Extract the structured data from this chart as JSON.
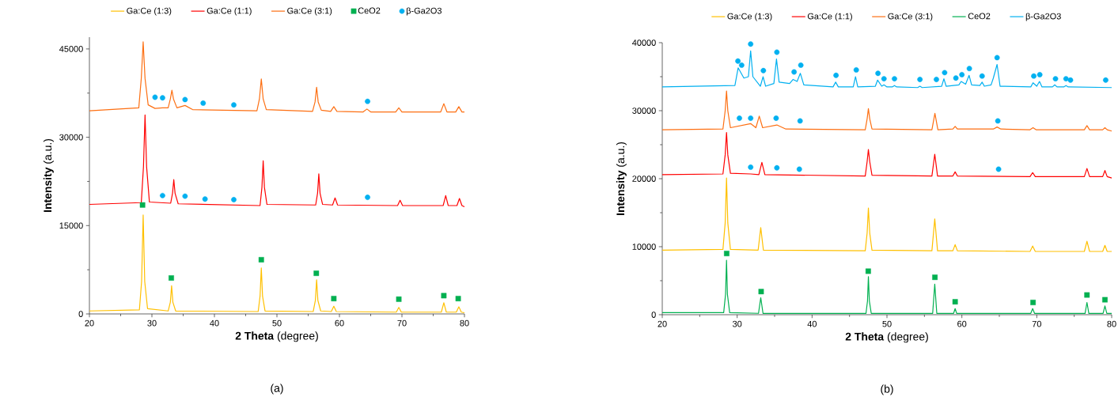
{
  "chart_data": [
    {
      "type": "line",
      "xlabel": "**2 Theta** (degree)",
      "ylabel": "**Intensity** (a.u.)",
      "annotations": [
        "(a)"
      ],
      "xlim": [
        20,
        80
      ],
      "ylim": [
        0,
        47000
      ],
      "xticks": [
        20,
        30,
        40,
        50,
        60,
        70,
        80
      ],
      "yticks": [
        0,
        15000,
        30000,
        45000
      ],
      "legend": "top",
      "series": [
        {
          "name": "Ga:Ce (1:3)",
          "color": "#ffc000",
          "type": "line",
          "marker": "none",
          "x": [
            20,
            28.0,
            28.35,
            28.6,
            28.85,
            29.3,
            32.6,
            32.95,
            33.15,
            33.35,
            33.8,
            47.0,
            47.3,
            47.5,
            47.7,
            48.1,
            55.8,
            56.15,
            56.35,
            56.55,
            57.0,
            58.7,
            59.1,
            59.5,
            69.1,
            69.5,
            69.9,
            76.3,
            76.7,
            77.1,
            78.7,
            79.1,
            79.5,
            80
          ],
          "values": [
            500,
            700,
            5500,
            16800,
            5500,
            900,
            500,
            2000,
            4800,
            2000,
            500,
            400,
            3000,
            7800,
            3000,
            500,
            400,
            2300,
            5800,
            2300,
            500,
            400,
            1300,
            400,
            300,
            1100,
            300,
            300,
            1900,
            300,
            300,
            1200,
            300,
            200
          ]
        },
        {
          "name": "Ga:Ce (1:1)",
          "color": "#ff0000",
          "type": "line",
          "marker": "none",
          "x": [
            20,
            28.3,
            28.65,
            28.9,
            29.15,
            29.6,
            33.0,
            33.3,
            33.5,
            33.7,
            34.2,
            47.3,
            47.6,
            47.8,
            48.0,
            48.4,
            56.2,
            56.5,
            56.7,
            56.9,
            57.3,
            58.9,
            59.3,
            59.7,
            69.3,
            69.7,
            70.1,
            76.6,
            77.0,
            77.4,
            78.8,
            79.2,
            79.6,
            80
          ],
          "values": [
            18600,
            18900,
            25000,
            33800,
            25000,
            19000,
            18800,
            20500,
            22800,
            20500,
            18700,
            18400,
            21500,
            26000,
            21500,
            18600,
            18500,
            20500,
            23800,
            20500,
            18600,
            18500,
            19700,
            18500,
            18400,
            19300,
            18400,
            18400,
            20100,
            18400,
            18400,
            19600,
            18400,
            18200
          ]
        },
        {
          "name": "Ga:Ce (3:1)",
          "color": "#fd6f12",
          "type": "line",
          "marker": "none",
          "x": [
            20,
            27.9,
            28.3,
            28.6,
            28.9,
            29.4,
            30.5,
            31.7,
            32.6,
            32.95,
            33.2,
            33.45,
            34.0,
            35.3,
            36.5,
            46.8,
            47.2,
            47.5,
            47.8,
            48.3,
            55.7,
            56.1,
            56.35,
            56.6,
            57.1,
            58.6,
            59.1,
            59.6,
            63.8,
            64.4,
            65.0,
            69.0,
            69.5,
            70.0,
            76.2,
            76.7,
            77.2,
            78.6,
            79.1,
            79.6,
            80
          ],
          "values": [
            34500,
            35000,
            40000,
            46200,
            40000,
            35500,
            34900,
            35000,
            35000,
            36500,
            38000,
            36500,
            35000,
            35400,
            34700,
            34500,
            36500,
            39900,
            36500,
            34700,
            34400,
            36000,
            38500,
            36000,
            34600,
            34400,
            35200,
            34400,
            34300,
            34800,
            34300,
            34300,
            35000,
            34300,
            34300,
            35700,
            34300,
            34300,
            35200,
            34300,
            34300
          ]
        },
        {
          "name": "CeO2",
          "color": "#00b050",
          "type": "scatter",
          "marker": "square",
          "x": [
            28.5,
            33.1,
            47.5,
            56.3,
            59.1,
            69.5,
            76.7,
            79.0
          ],
          "values": [
            18500,
            6100,
            9200,
            6900,
            2600,
            2500,
            3100,
            2600
          ]
        },
        {
          "name": "β-Ga2O3",
          "color": "#00b0f0",
          "type": "scatter",
          "marker": "circle",
          "x": [
            30.5,
            31.7,
            35.3,
            38.2,
            43.1,
            64.5,
            31.7,
            35.3,
            38.5,
            43.1,
            64.5
          ],
          "values": [
            36800,
            36700,
            36400,
            35800,
            35500,
            36100,
            20100,
            20000,
            19500,
            19400,
            19800
          ]
        }
      ]
    },
    {
      "type": "line",
      "xlabel": "**2 Theta** (degree)",
      "ylabel": "**Intensity** (a.u.)",
      "annotations": [
        "(b)"
      ],
      "xlim": [
        20,
        80
      ],
      "ylim": [
        0,
        40000
      ],
      "xticks": [
        20,
        30,
        40,
        50,
        60,
        70,
        80
      ],
      "yticks": [
        0,
        10000,
        20000,
        30000,
        40000
      ],
      "legend": "top",
      "series": [
        {
          "name": "Ga:Ce (1:3)",
          "color": "#ffc000",
          "type": "line",
          "marker": "none",
          "x": [
            20,
            28.1,
            28.4,
            28.58,
            28.75,
            29.1,
            32.8,
            33.15,
            33.5,
            47.1,
            47.35,
            47.52,
            47.7,
            48.0,
            56.0,
            56.38,
            56.75,
            58.8,
            59.1,
            59.4,
            69.1,
            69.45,
            69.8,
            76.35,
            76.7,
            77.05,
            78.8,
            79.1,
            79.4,
            80
          ],
          "values": [
            9500,
            9600,
            13500,
            20100,
            13500,
            9600,
            9500,
            12800,
            9500,
            9400,
            12000,
            15700,
            12000,
            9500,
            9400,
            14100,
            9400,
            9400,
            10300,
            9400,
            9300,
            10100,
            9300,
            9300,
            10800,
            9300,
            9300,
            10200,
            9300,
            9300
          ]
        },
        {
          "name": "Ga:Ce (1:1)",
          "color": "#ff0000",
          "type": "line",
          "marker": "none",
          "x": [
            20,
            28.1,
            28.4,
            28.58,
            28.75,
            29.1,
            31.8,
            32.9,
            33.3,
            33.7,
            47.1,
            47.35,
            47.52,
            47.7,
            48.0,
            56.0,
            56.38,
            56.75,
            58.8,
            59.1,
            59.4,
            69.1,
            69.45,
            69.8,
            76.35,
            76.7,
            77.05,
            78.8,
            79.1,
            79.4,
            80
          ],
          "values": [
            20600,
            20700,
            23500,
            26800,
            23500,
            20800,
            20700,
            20600,
            22400,
            20600,
            20400,
            22500,
            24300,
            22500,
            20500,
            20400,
            23600,
            20400,
            20400,
            21000,
            20400,
            20300,
            20900,
            20300,
            20300,
            21500,
            20300,
            20300,
            21200,
            20300,
            20100
          ]
        },
        {
          "name": "Ga:Ce (3:1)",
          "color": "#fd6f12",
          "type": "line",
          "marker": "none",
          "x": [
            20,
            28.1,
            28.4,
            28.58,
            28.75,
            29.1,
            31.8,
            32.5,
            32.95,
            33.4,
            35.3,
            36.5,
            47.1,
            47.35,
            47.52,
            47.7,
            48.0,
            56.0,
            56.4,
            56.8,
            58.8,
            59.1,
            59.4,
            64.2,
            64.7,
            65.2,
            69.1,
            69.5,
            69.9,
            76.35,
            76.7,
            77.05,
            78.8,
            79.1,
            79.4,
            80
          ],
          "values": [
            27200,
            27300,
            30000,
            32900,
            30000,
            27500,
            28100,
            27500,
            29200,
            27500,
            27900,
            27300,
            27200,
            28800,
            30300,
            28800,
            27300,
            27200,
            29600,
            27200,
            27300,
            27700,
            27300,
            27300,
            27600,
            27300,
            27200,
            27500,
            27200,
            27200,
            27800,
            27200,
            27200,
            27500,
            27200,
            27000
          ]
        },
        {
          "name": "CeO2",
          "color": "#00b050",
          "type": "line",
          "marker": "none",
          "x": [
            20,
            28.2,
            28.45,
            28.58,
            28.7,
            29.0,
            32.85,
            33.15,
            33.45,
            47.2,
            47.4,
            47.52,
            47.65,
            47.9,
            56.1,
            56.38,
            56.65,
            58.9,
            59.1,
            59.3,
            69.2,
            69.45,
            69.7,
            76.45,
            76.7,
            76.95,
            78.85,
            79.1,
            79.35,
            80
          ],
          "values": [
            300,
            300,
            3000,
            8000,
            3000,
            300,
            200,
            2500,
            200,
            200,
            2000,
            5600,
            2000,
            200,
            200,
            4500,
            200,
            200,
            900,
            200,
            200,
            900,
            200,
            200,
            1800,
            200,
            200,
            1300,
            200,
            200
          ]
        },
        {
          "name": "β-Ga2O3",
          "color": "#00b0f0",
          "type": "line",
          "marker": "none",
          "x": [
            20,
            29.7,
            30.13,
            30.9,
            31.5,
            31.8,
            32.1,
            33.1,
            33.46,
            33.8,
            34.9,
            35.25,
            35.6,
            37.0,
            37.47,
            38.0,
            38.43,
            38.9,
            42.8,
            43.15,
            43.5,
            45.5,
            45.8,
            46.1,
            48.45,
            48.75,
            49.3,
            49.6,
            50.0,
            50.7,
            51.0,
            51.3,
            54.1,
            54.4,
            54.7,
            57.3,
            57.6,
            57.9,
            59.6,
            59.9,
            60.5,
            60.96,
            61.3,
            62.4,
            62.7,
            63.0,
            63.9,
            64.2,
            64.7,
            65.1,
            69.2,
            69.5,
            70.0,
            70.36,
            70.7,
            72.1,
            72.4,
            72.7,
            73.6,
            73.9,
            74.2,
            80
          ],
          "values": [
            33500,
            33700,
            36300,
            34800,
            35000,
            38800,
            35000,
            33600,
            35000,
            33600,
            34000,
            37600,
            34200,
            34000,
            34600,
            34300,
            35500,
            33800,
            33500,
            34200,
            33500,
            33500,
            35000,
            33500,
            33600,
            34500,
            33600,
            33800,
            33500,
            33500,
            33700,
            33500,
            33400,
            33600,
            33400,
            33600,
            34700,
            33600,
            33800,
            34300,
            33900,
            35200,
            33800,
            33700,
            34200,
            33600,
            33800,
            34800,
            36800,
            33600,
            33500,
            34100,
            33600,
            34300,
            33500,
            33500,
            33800,
            33500,
            33500,
            33700,
            33500,
            33400
          ]
        },
        {
          "color": "#00b050",
          "type": "scatter",
          "marker": "square",
          "x": [
            28.6,
            33.2,
            47.5,
            56.4,
            59.1,
            69.5,
            76.7,
            79.1
          ],
          "values": [
            9000,
            3400,
            6400,
            5500,
            1900,
            1800,
            2900,
            2200
          ]
        },
        {
          "color": "#00b0f0",
          "type": "scatter",
          "marker": "circle",
          "x": [
            30.1,
            30.6,
            31.8,
            33.5,
            35.3,
            37.6,
            38.5,
            43.2,
            45.9,
            48.8,
            49.6,
            51.0,
            54.4,
            56.6,
            57.7,
            59.2,
            60.0,
            61.0,
            62.7,
            64.7,
            69.6,
            70.4,
            72.5,
            73.9,
            74.5,
            79.2,
            30.3,
            31.8,
            35.2,
            38.4,
            64.8,
            31.8,
            35.3,
            38.3,
            64.9
          ],
          "values": [
            37300,
            36700,
            39800,
            35900,
            38600,
            35700,
            36700,
            35200,
            36000,
            35500,
            34700,
            34700,
            34600,
            34600,
            35600,
            34800,
            35300,
            36200,
            35100,
            37800,
            35100,
            35300,
            34700,
            34700,
            34500,
            34500,
            28900,
            28900,
            28900,
            28500,
            28500,
            21700,
            21600,
            21400,
            21400
          ]
        }
      ]
    }
  ]
}
